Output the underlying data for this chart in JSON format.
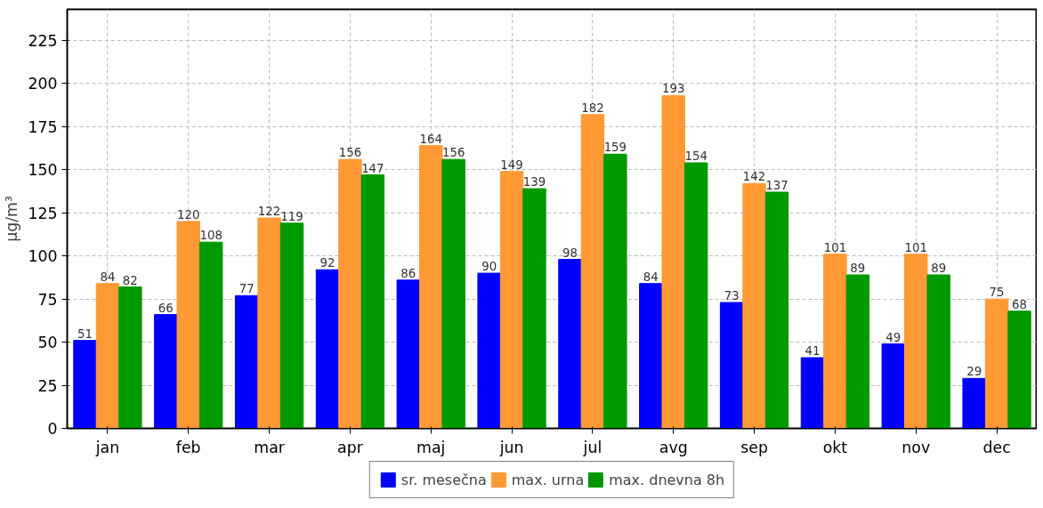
{
  "chart_data": {
    "type": "bar",
    "ylabel": "μg/m³",
    "categories": [
      "jan",
      "feb",
      "mar",
      "apr",
      "maj",
      "jun",
      "jul",
      "avg",
      "sep",
      "okt",
      "nov",
      "dec"
    ],
    "series": [
      {
        "name": "sr. mesečna",
        "color": "#0000ff",
        "values": [
          51,
          66,
          77,
          92,
          86,
          90,
          98,
          84,
          73,
          41,
          49,
          29
        ]
      },
      {
        "name": "max. urna",
        "color": "#ff9933",
        "values": [
          84,
          120,
          122,
          156,
          164,
          149,
          182,
          193,
          142,
          101,
          101,
          75
        ]
      },
      {
        "name": "max. dnevna 8h",
        "color": "#009900",
        "values": [
          82,
          108,
          119,
          147,
          156,
          139,
          159,
          154,
          137,
          89,
          89,
          68
        ]
      }
    ],
    "ylim": [
      0,
      243
    ],
    "yticks": [
      0,
      25,
      50,
      75,
      100,
      125,
      150,
      175,
      200,
      225
    ],
    "grid": true,
    "legend": "bottom",
    "data_labels": true
  }
}
